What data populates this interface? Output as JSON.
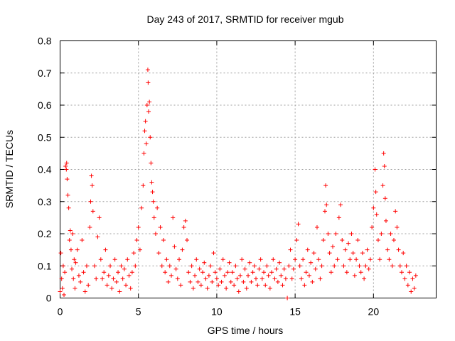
{
  "chart_data": {
    "type": "scatter",
    "title": "Day 243 of 2017, SRMTID for receiver mgub",
    "xlabel": "GPS time / hours",
    "ylabel": "SRMTID / TECUs",
    "xlim": [
      0,
      24
    ],
    "ylim": [
      0,
      0.8
    ],
    "xticks": [
      0,
      5,
      10,
      15,
      20
    ],
    "xtick_labels": [
      "0",
      "5",
      "10",
      "15",
      "20"
    ],
    "yticks": [
      0,
      0.1,
      0.2,
      0.3,
      0.4,
      0.5,
      0.6,
      0.7,
      0.8
    ],
    "ytick_labels": [
      "0",
      "0.1",
      "0.2",
      "0.3",
      "0.4",
      "0.5",
      "0.6",
      "0.7",
      "0.8"
    ],
    "grid": true,
    "marker": "+",
    "marker_color": "#ff0000",
    "series": [
      {
        "name": "SRMTID",
        "points": [
          [
            0.0,
            0.02
          ],
          [
            0.05,
            0.14
          ],
          [
            0.1,
            0.06
          ],
          [
            0.15,
            0.03
          ],
          [
            0.2,
            0.1
          ],
          [
            0.25,
            0.01
          ],
          [
            0.3,
            0.08
          ],
          [
            0.35,
            0.41
          ],
          [
            0.4,
            0.4
          ],
          [
            0.42,
            0.42
          ],
          [
            0.45,
            0.37
          ],
          [
            0.5,
            0.32
          ],
          [
            0.55,
            0.28
          ],
          [
            0.6,
            0.18
          ],
          [
            0.65,
            0.21
          ],
          [
            0.7,
            0.15
          ],
          [
            0.75,
            0.09
          ],
          [
            0.8,
            0.2
          ],
          [
            0.85,
            0.06
          ],
          [
            0.9,
            0.12
          ],
          [
            0.95,
            0.03
          ],
          [
            1.0,
            0.11
          ],
          [
            1.1,
            0.15
          ],
          [
            1.2,
            0.07
          ],
          [
            1.3,
            0.05
          ],
          [
            1.4,
            0.18
          ],
          [
            1.5,
            0.08
          ],
          [
            1.6,
            0.02
          ],
          [
            1.7,
            0.1
          ],
          [
            1.8,
            0.04
          ],
          [
            1.9,
            0.22
          ],
          [
            1.95,
            0.3
          ],
          [
            2.0,
            0.38
          ],
          [
            2.05,
            0.35
          ],
          [
            2.1,
            0.27
          ],
          [
            2.2,
            0.1
          ],
          [
            2.3,
            0.06
          ],
          [
            2.4,
            0.19
          ],
          [
            2.5,
            0.25
          ],
          [
            2.6,
            0.12
          ],
          [
            2.7,
            0.06
          ],
          [
            2.8,
            0.08
          ],
          [
            2.9,
            0.15
          ],
          [
            3.0,
            0.04
          ],
          [
            3.1,
            0.07
          ],
          [
            3.2,
            0.1
          ],
          [
            3.3,
            0.03
          ],
          [
            3.4,
            0.06
          ],
          [
            3.5,
            0.12
          ],
          [
            3.6,
            0.05
          ],
          [
            3.7,
            0.08
          ],
          [
            3.8,
            0.02
          ],
          [
            3.9,
            0.1
          ],
          [
            4.0,
            0.06
          ],
          [
            4.1,
            0.09
          ],
          [
            4.2,
            0.04
          ],
          [
            4.3,
            0.12
          ],
          [
            4.4,
            0.07
          ],
          [
            4.5,
            0.03
          ],
          [
            4.6,
            0.08
          ],
          [
            4.7,
            0.14
          ],
          [
            4.8,
            0.1
          ],
          [
            4.9,
            0.18
          ],
          [
            5.0,
            0.22
          ],
          [
            5.1,
            0.15
          ],
          [
            5.2,
            0.28
          ],
          [
            5.3,
            0.35
          ],
          [
            5.35,
            0.45
          ],
          [
            5.4,
            0.52
          ],
          [
            5.45,
            0.55
          ],
          [
            5.5,
            0.48
          ],
          [
            5.55,
            0.6
          ],
          [
            5.6,
            0.71
          ],
          [
            5.62,
            0.67
          ],
          [
            5.65,
            0.58
          ],
          [
            5.7,
            0.61
          ],
          [
            5.75,
            0.5
          ],
          [
            5.8,
            0.42
          ],
          [
            5.85,
            0.36
          ],
          [
            5.9,
            0.33
          ],
          [
            5.95,
            0.3
          ],
          [
            6.0,
            0.25
          ],
          [
            6.1,
            0.2
          ],
          [
            6.2,
            0.28
          ],
          [
            6.3,
            0.14
          ],
          [
            6.4,
            0.22
          ],
          [
            6.5,
            0.1
          ],
          [
            6.6,
            0.18
          ],
          [
            6.7,
            0.08
          ],
          [
            6.8,
            0.12
          ],
          [
            6.9,
            0.05
          ],
          [
            7.0,
            0.1
          ],
          [
            7.1,
            0.07
          ],
          [
            7.2,
            0.25
          ],
          [
            7.3,
            0.16
          ],
          [
            7.4,
            0.09
          ],
          [
            7.5,
            0.06
          ],
          [
            7.6,
            0.12
          ],
          [
            7.7,
            0.04
          ],
          [
            7.8,
            0.15
          ],
          [
            7.9,
            0.22
          ],
          [
            8.0,
            0.24
          ],
          [
            8.1,
            0.18
          ],
          [
            8.2,
            0.08
          ],
          [
            8.3,
            0.05
          ],
          [
            8.4,
            0.1
          ],
          [
            8.5,
            0.03
          ],
          [
            8.6,
            0.07
          ],
          [
            8.7,
            0.12
          ],
          [
            8.8,
            0.05
          ],
          [
            8.9,
            0.09
          ],
          [
            9.0,
            0.04
          ],
          [
            9.1,
            0.08
          ],
          [
            9.2,
            0.11
          ],
          [
            9.3,
            0.06
          ],
          [
            9.4,
            0.03
          ],
          [
            9.5,
            0.07
          ],
          [
            9.6,
            0.1
          ],
          [
            9.7,
            0.05
          ],
          [
            9.8,
            0.14
          ],
          [
            9.9,
            0.08
          ],
          [
            10.0,
            0.06
          ],
          [
            10.1,
            0.04
          ],
          [
            10.2,
            0.09
          ],
          [
            10.3,
            0.05
          ],
          [
            10.4,
            0.12
          ],
          [
            10.5,
            0.07
          ],
          [
            10.6,
            0.03
          ],
          [
            10.7,
            0.08
          ],
          [
            10.8,
            0.11
          ],
          [
            10.9,
            0.05
          ],
          [
            11.0,
            0.08
          ],
          [
            11.1,
            0.04
          ],
          [
            11.2,
            0.1
          ],
          [
            11.3,
            0.06
          ],
          [
            11.4,
            0.02
          ],
          [
            11.5,
            0.07
          ],
          [
            11.6,
            0.12
          ],
          [
            11.7,
            0.05
          ],
          [
            11.8,
            0.09
          ],
          [
            11.9,
            0.03
          ],
          [
            12.0,
            0.07
          ],
          [
            12.1,
            0.11
          ],
          [
            12.2,
            0.05
          ],
          [
            12.3,
            0.08
          ],
          [
            12.4,
            0.1
          ],
          [
            12.5,
            0.06
          ],
          [
            12.6,
            0.04
          ],
          [
            12.7,
            0.09
          ],
          [
            12.8,
            0.12
          ],
          [
            12.9,
            0.06
          ],
          [
            13.0,
            0.08
          ],
          [
            13.1,
            0.04
          ],
          [
            13.2,
            0.1
          ],
          [
            13.3,
            0.07
          ],
          [
            13.4,
            0.03
          ],
          [
            13.5,
            0.08
          ],
          [
            13.6,
            0.12
          ],
          [
            13.7,
            0.06
          ],
          [
            13.8,
            0.09
          ],
          [
            13.9,
            0.05
          ],
          [
            14.0,
            0.11
          ],
          [
            14.1,
            0.07
          ],
          [
            14.2,
            0.04
          ],
          [
            14.3,
            0.09
          ],
          [
            14.4,
            0.06
          ],
          [
            14.5,
            0.0
          ],
          [
            14.6,
            0.1
          ],
          [
            14.7,
            0.15
          ],
          [
            14.8,
            0.06
          ],
          [
            14.9,
            0.09
          ],
          [
            15.0,
            0.12
          ],
          [
            15.1,
            0.18
          ],
          [
            15.2,
            0.23
          ],
          [
            15.3,
            0.1
          ],
          [
            15.4,
            0.06
          ],
          [
            15.5,
            0.12
          ],
          [
            15.6,
            0.04
          ],
          [
            15.7,
            0.08
          ],
          [
            15.8,
            0.15
          ],
          [
            15.9,
            0.07
          ],
          [
            16.0,
            0.11
          ],
          [
            16.1,
            0.05
          ],
          [
            16.2,
            0.14
          ],
          [
            16.3,
            0.09
          ],
          [
            16.4,
            0.22
          ],
          [
            16.5,
            0.12
          ],
          [
            16.6,
            0.06
          ],
          [
            16.7,
            0.1
          ],
          [
            16.8,
            0.18
          ],
          [
            16.9,
            0.27
          ],
          [
            16.95,
            0.35
          ],
          [
            17.0,
            0.29
          ],
          [
            17.1,
            0.2
          ],
          [
            17.2,
            0.14
          ],
          [
            17.3,
            0.08
          ],
          [
            17.4,
            0.16
          ],
          [
            17.5,
            0.1
          ],
          [
            17.6,
            0.2
          ],
          [
            17.7,
            0.12
          ],
          [
            17.8,
            0.25
          ],
          [
            17.9,
            0.29
          ],
          [
            18.0,
            0.18
          ],
          [
            18.1,
            0.1
          ],
          [
            18.2,
            0.15
          ],
          [
            18.3,
            0.08
          ],
          [
            18.4,
            0.17
          ],
          [
            18.5,
            0.12
          ],
          [
            18.6,
            0.2
          ],
          [
            18.7,
            0.14
          ],
          [
            18.8,
            0.07
          ],
          [
            18.9,
            0.12
          ],
          [
            19.0,
            0.18
          ],
          [
            19.1,
            0.1
          ],
          [
            19.2,
            0.08
          ],
          [
            19.3,
            0.14
          ],
          [
            19.4,
            0.06
          ],
          [
            19.5,
            0.1
          ],
          [
            19.6,
            0.15
          ],
          [
            19.7,
            0.09
          ],
          [
            19.8,
            0.12
          ],
          [
            19.9,
            0.22
          ],
          [
            20.0,
            0.28
          ],
          [
            20.1,
            0.4
          ],
          [
            20.15,
            0.33
          ],
          [
            20.2,
            0.26
          ],
          [
            20.3,
            0.18
          ],
          [
            20.4,
            0.12
          ],
          [
            20.5,
            0.2
          ],
          [
            20.6,
            0.35
          ],
          [
            20.65,
            0.45
          ],
          [
            20.7,
            0.41
          ],
          [
            20.75,
            0.31
          ],
          [
            20.8,
            0.24
          ],
          [
            20.9,
            0.15
          ],
          [
            21.0,
            0.12
          ],
          [
            21.1,
            0.2
          ],
          [
            21.2,
            0.1
          ],
          [
            21.3,
            0.18
          ],
          [
            21.4,
            0.27
          ],
          [
            21.5,
            0.22
          ],
          [
            21.6,
            0.15
          ],
          [
            21.7,
            0.1
          ],
          [
            21.8,
            0.08
          ],
          [
            21.9,
            0.14
          ],
          [
            22.0,
            0.06
          ],
          [
            22.1,
            0.1
          ],
          [
            22.2,
            0.04
          ],
          [
            22.3,
            0.08
          ],
          [
            22.4,
            0.02
          ],
          [
            22.5,
            0.06
          ],
          [
            22.6,
            0.03
          ],
          [
            22.7,
            0.07
          ]
        ]
      }
    ]
  }
}
